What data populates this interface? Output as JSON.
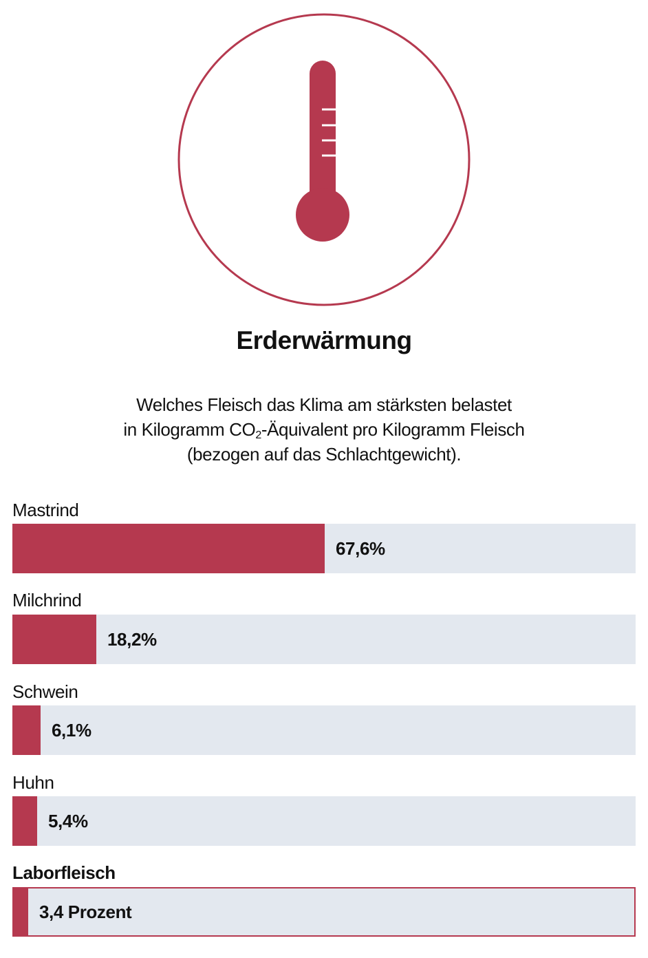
{
  "colors": {
    "accent": "#b5394f",
    "track": "#e3e8ef",
    "ring": "#b5394f"
  },
  "icon": "thermometer-icon",
  "title": "Erderwärmung",
  "subtitle": {
    "line1": "Welches Fleisch das Klima am stärksten belastet",
    "line2_before": "in Kilogramm CO",
    "line2_sub": "2",
    "line2_after": "-Äquivalent pro Kilogramm Fleisch",
    "line3": "(bezogen auf das Schlachtgewicht)."
  },
  "chart_data": {
    "type": "bar",
    "orientation": "horizontal",
    "title": "Erderwärmung",
    "categories": [
      "Mastrind",
      "Milchrind",
      "Schwein",
      "Huhn",
      "Laborfleisch"
    ],
    "values": [
      67.6,
      18.2,
      6.1,
      5.4,
      3.4
    ],
    "value_labels": [
      "67,6%",
      "18,2%",
      "6,1%",
      "5,4%",
      "3,4 Prozent"
    ],
    "highlighted": "Laborfleisch",
    "xlim": [
      0,
      135
    ]
  }
}
